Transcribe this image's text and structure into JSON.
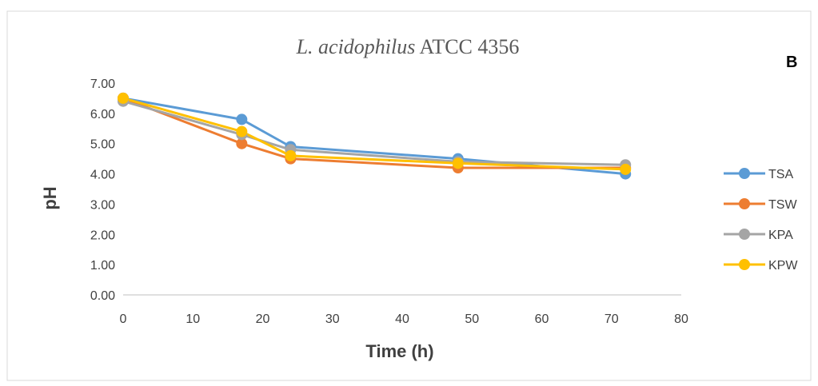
{
  "chart_data": {
    "type": "line",
    "title_italic": "L. acidophilus",
    "title_rest": " ATCC 4356",
    "panel_label": "B",
    "xlabel": "Time (h)",
    "ylabel": "pH",
    "xlim": [
      0,
      80
    ],
    "ylim": [
      0,
      7
    ],
    "xticks": [
      0,
      10,
      20,
      30,
      40,
      50,
      60,
      70,
      80
    ],
    "xtick_labels": [
      "0",
      "10",
      "20",
      "30",
      "40",
      "50",
      "60",
      "70",
      "80"
    ],
    "yticks": [
      0,
      1,
      2,
      3,
      4,
      5,
      6,
      7
    ],
    "ytick_labels": [
      "0.00",
      "1.00",
      "2.00",
      "3.00",
      "4.00",
      "5.00",
      "6.00",
      "7.00"
    ],
    "grid": false,
    "legend_position": "right",
    "x": [
      0,
      17,
      24,
      48,
      72
    ],
    "series": [
      {
        "name": "TSA",
        "color": "#5B9BD5",
        "values": [
          6.5,
          5.8,
          4.9,
          4.5,
          4.0
        ]
      },
      {
        "name": "TSW",
        "color": "#ED7D31",
        "values": [
          6.5,
          5.0,
          4.5,
          4.2,
          4.2
        ]
      },
      {
        "name": "KPA",
        "color": "#A5A5A5",
        "values": [
          6.4,
          5.3,
          4.8,
          4.4,
          4.3
        ]
      },
      {
        "name": "KPW",
        "color": "#FFC000",
        "values": [
          6.5,
          5.4,
          4.6,
          4.35,
          4.15
        ]
      }
    ]
  }
}
